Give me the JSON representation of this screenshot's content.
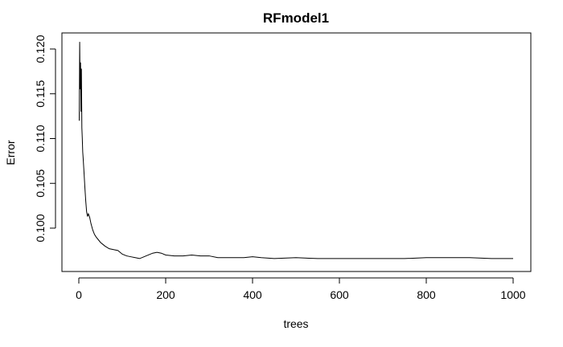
{
  "chart_data": {
    "type": "line",
    "title": "RFmodel1",
    "xlabel": "trees",
    "ylabel": "Error",
    "xlim": [
      0,
      1000
    ],
    "ylim": [
      0.0962,
      0.1215
    ],
    "x_ticks": [
      0,
      200,
      400,
      600,
      800,
      1000
    ],
    "x_tick_labels": [
      "0",
      "200",
      "400",
      "600",
      "800",
      "1000"
    ],
    "y_ticks": [
      0.1,
      0.105,
      0.11,
      0.115,
      0.12
    ],
    "y_tick_labels": [
      "0.100",
      "0.105",
      "0.110",
      "0.115",
      "0.120"
    ],
    "grid": false,
    "line_color": "#000000",
    "series": [
      {
        "x": [
          1,
          2,
          3,
          4,
          5,
          6,
          7,
          8,
          9,
          10,
          12,
          14,
          16,
          18,
          20,
          22,
          25,
          28,
          32,
          36,
          40,
          45,
          50,
          55,
          60,
          70,
          80,
          90,
          100,
          110,
          120,
          130,
          140,
          150,
          160,
          170,
          180,
          190,
          200,
          220,
          240,
          260,
          280,
          300,
          320,
          340,
          360,
          380,
          400,
          420,
          450,
          500,
          550,
          600,
          650,
          700,
          750,
          800,
          850,
          900,
          950,
          1000
        ],
        "y": [
          0.112,
          0.1208,
          0.1155,
          0.1185,
          0.113,
          0.1178,
          0.1112,
          0.11,
          0.1085,
          0.1078,
          0.1062,
          0.1045,
          0.103,
          0.1018,
          0.1013,
          0.1016,
          0.1012,
          0.1005,
          0.0998,
          0.0993,
          0.099,
          0.0987,
          0.0984,
          0.0982,
          0.098,
          0.0977,
          0.0976,
          0.0975,
          0.0971,
          0.0969,
          0.0968,
          0.0967,
          0.0966,
          0.0968,
          0.097,
          0.0972,
          0.0973,
          0.0972,
          0.097,
          0.0969,
          0.0969,
          0.097,
          0.0969,
          0.0969,
          0.0967,
          0.0967,
          0.0967,
          0.0967,
          0.0968,
          0.0967,
          0.0966,
          0.0967,
          0.0966,
          0.0966,
          0.0966,
          0.0966,
          0.0966,
          0.0967,
          0.0967,
          0.0967,
          0.0966,
          0.0966
        ]
      }
    ]
  }
}
